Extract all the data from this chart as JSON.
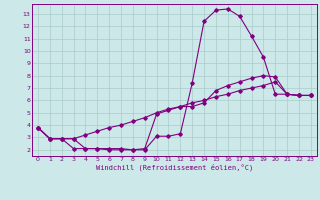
{
  "bg_color": "#cce8e8",
  "line_color": "#800080",
  "grid_color": "#aacccc",
  "xlabel": "Windchill (Refroidissement éolien,°C)",
  "xlabel_color": "#800080",
  "tick_color": "#800080",
  "xlim": [
    -0.5,
    23.5
  ],
  "ylim": [
    1.5,
    13.8
  ],
  "xticks": [
    0,
    1,
    2,
    3,
    4,
    5,
    6,
    7,
    8,
    9,
    10,
    11,
    12,
    13,
    14,
    15,
    16,
    17,
    18,
    19,
    20,
    21,
    22,
    23
  ],
  "yticks": [
    2,
    3,
    4,
    5,
    6,
    7,
    8,
    9,
    10,
    11,
    12,
    13
  ],
  "curve1_x": [
    0,
    1,
    2,
    3,
    4,
    5,
    6,
    7,
    8,
    9,
    10,
    11,
    12,
    13,
    14,
    15,
    16,
    17,
    18,
    19,
    20,
    21,
    22,
    23
  ],
  "curve1_y": [
    3.8,
    2.9,
    2.9,
    2.9,
    2.1,
    2.1,
    2.0,
    2.0,
    2.0,
    2.0,
    3.1,
    3.1,
    3.3,
    7.4,
    12.4,
    13.3,
    13.4,
    12.8,
    11.2,
    9.5,
    6.5,
    6.5,
    6.4,
    6.4
  ],
  "curve2_x": [
    0,
    1,
    2,
    3,
    4,
    5,
    6,
    7,
    8,
    9,
    10,
    11,
    12,
    13,
    14,
    15,
    16,
    17,
    18,
    19,
    20,
    21,
    22,
    23
  ],
  "curve2_y": [
    3.8,
    2.9,
    2.9,
    2.9,
    3.2,
    3.5,
    3.8,
    4.0,
    4.3,
    4.6,
    5.0,
    5.3,
    5.5,
    5.8,
    6.0,
    6.3,
    6.5,
    6.8,
    7.0,
    7.2,
    7.5,
    6.5,
    6.4,
    6.4
  ],
  "curve3_x": [
    0,
    1,
    2,
    3,
    4,
    5,
    6,
    7,
    8,
    9,
    10,
    11,
    12,
    13,
    14,
    15,
    16,
    17,
    18,
    19,
    20,
    21,
    22,
    23
  ],
  "curve3_y": [
    3.8,
    2.9,
    2.9,
    2.1,
    2.1,
    2.1,
    2.1,
    2.1,
    2.0,
    2.1,
    4.9,
    5.2,
    5.5,
    5.5,
    5.8,
    6.8,
    7.2,
    7.5,
    7.8,
    8.0,
    7.9,
    6.5,
    6.4,
    6.4
  ]
}
